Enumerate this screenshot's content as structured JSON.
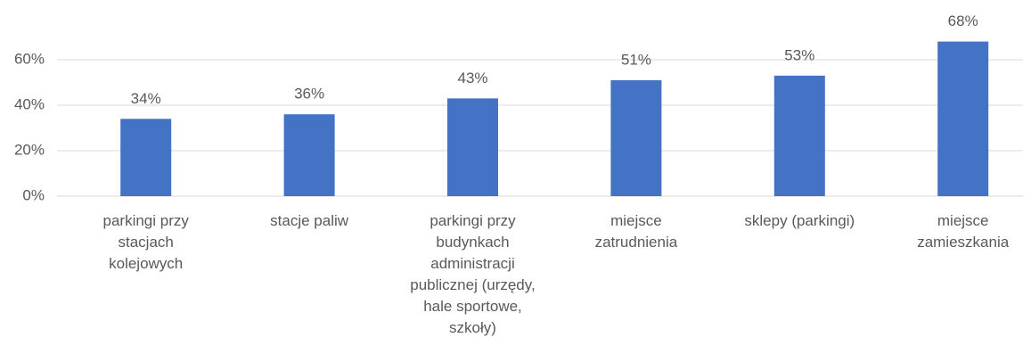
{
  "chart_data": {
    "type": "bar",
    "categories": [
      "parkingi przy stacjach kolejowych",
      "stacje paliw",
      "parkingi przy budynkach administracji publicznej (urzędy, hale sportowe, szkoły)",
      "miejsce zatrudnienia",
      "sklepy (parkingi)",
      "miejsce zamieszkania"
    ],
    "values": [
      34,
      36,
      43,
      51,
      53,
      68
    ],
    "value_labels": [
      "34%",
      "36%",
      "43%",
      "51%",
      "53%",
      "68%"
    ],
    "color": "#4472c4",
    "ylim": [
      0,
      70
    ],
    "yticks": [
      {
        "value": 0,
        "label": "0%"
      },
      {
        "value": 20,
        "label": "20%"
      },
      {
        "value": 40,
        "label": "40%"
      },
      {
        "value": 60,
        "label": "60%"
      }
    ],
    "grid": true
  }
}
